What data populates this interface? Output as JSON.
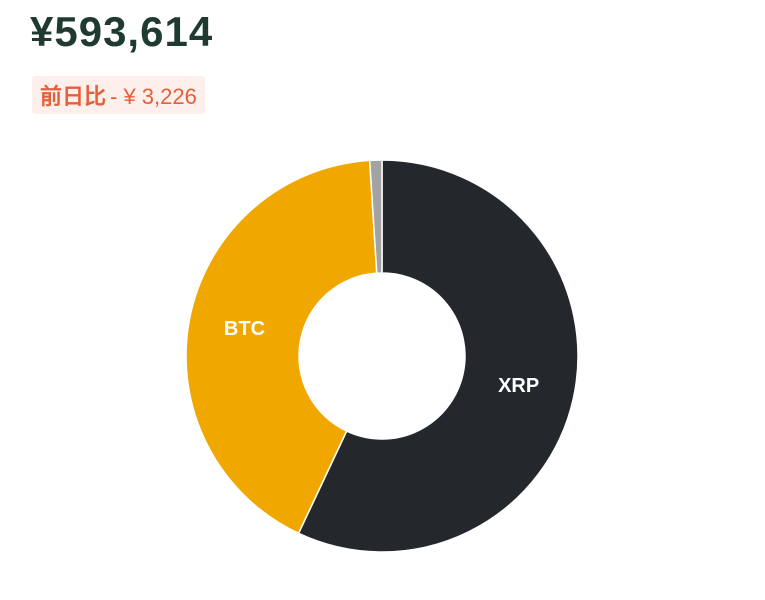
{
  "header": {
    "total": "¥593,614",
    "change_label": "前日比",
    "change_value": "- ¥ 3,226"
  },
  "chart_data": {
    "type": "pie",
    "categories": [
      "XRP",
      "BTC",
      null
    ],
    "values": [
      57,
      42,
      1
    ],
    "colors": [
      "#24282d",
      "#f0a800",
      "#a3a3a3"
    ]
  }
}
